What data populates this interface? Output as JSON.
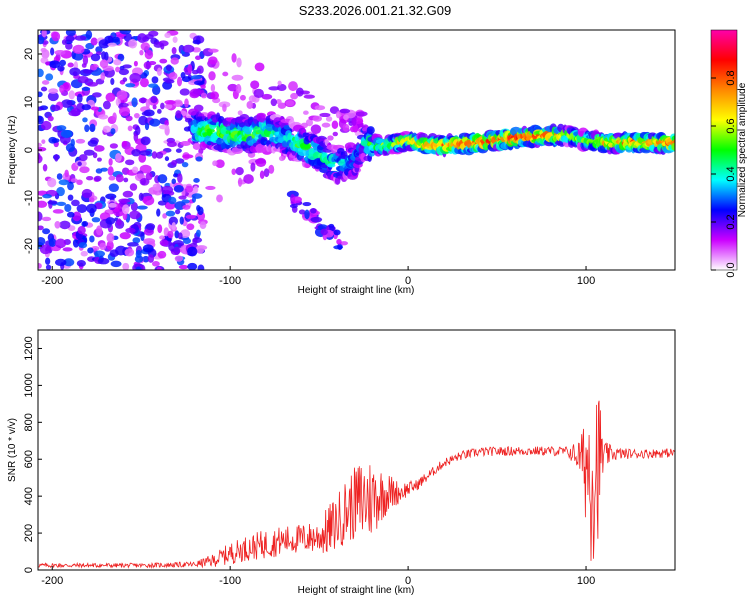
{
  "figure_title": "S233.2026.001.21.32.G09",
  "chart_data": [
    {
      "type": "heatmap",
      "title": "S233.2026.001.21.32.G09",
      "xlabel": "Height of straight line (km)",
      "ylabel": "Frequency (Hz)",
      "xlim": [
        -208,
        150
      ],
      "ylim": [
        -25,
        25
      ],
      "x_ticks": [
        -200,
        -100,
        0,
        100
      ],
      "y_ticks": [
        -20,
        -10,
        0,
        10,
        20
      ],
      "colorbar": {
        "label": "Normalized spectral amplitude",
        "range": [
          0,
          1
        ],
        "ticks": [
          0.0,
          0.2,
          0.4,
          0.6,
          0.8
        ],
        "colors": [
          "#ffffff",
          "#cc00ff",
          "#0000ff",
          "#00ffff",
          "#00ff00",
          "#ffff00",
          "#ff8800",
          "#ff0000",
          "#ff00aa"
        ]
      },
      "ridge": {
        "x": [
          -120,
          -110,
          -100,
          -90,
          -80,
          -70,
          -60,
          -50,
          -40,
          -30,
          -25,
          -20,
          -10,
          0,
          10,
          20,
          40,
          60,
          80,
          90,
          100,
          110,
          120,
          150
        ],
        "y": [
          4,
          4,
          3,
          3,
          4,
          3,
          1,
          -1,
          -3,
          -2,
          2,
          1,
          1,
          2,
          1,
          1,
          1.5,
          2.5,
          3,
          3,
          2,
          1.5,
          1.5,
          1.5
        ],
        "amp": [
          0.45,
          0.55,
          0.5,
          0.5,
          0.45,
          0.4,
          0.5,
          0.45,
          0.4,
          0.3,
          0.35,
          0.55,
          0.6,
          0.7,
          0.75,
          0.8,
          0.85,
          0.88,
          0.85,
          0.6,
          0.55,
          0.7,
          0.8,
          0.8
        ]
      },
      "noise_region_x": [
        -208,
        -115
      ],
      "noise_amplitude_range": [
        0.05,
        0.3
      ],
      "scatter_tail_x": [
        -65,
        -35
      ],
      "scatter_tail_y": [
        -10,
        -20
      ]
    },
    {
      "type": "line",
      "xlabel": "Height of straight line (km)",
      "ylabel": "SNR (10 * v/v)",
      "xlim": [
        -208,
        150
      ],
      "ylim": [
        0,
        1300
      ],
      "x_ticks": [
        -200,
        -100,
        0,
        100
      ],
      "y_ticks": [
        0,
        200,
        400,
        600,
        800,
        1000,
        1200
      ],
      "series": [
        {
          "name": "SNR",
          "color": "#ee2222",
          "envelope_x": [
            -208,
            -150,
            -120,
            -110,
            -100,
            -90,
            -80,
            -70,
            -60,
            -50,
            -45,
            -40,
            -35,
            -30,
            -25,
            -20,
            -15,
            -10,
            -5,
            0,
            5,
            10,
            15,
            20,
            30,
            40,
            60,
            80,
            90,
            95,
            98,
            100,
            102,
            105,
            108,
            110,
            115,
            120,
            130,
            150
          ],
          "envelope_mean": [
            25,
            25,
            30,
            50,
            90,
            120,
            140,
            160,
            170,
            180,
            210,
            260,
            320,
            360,
            380,
            390,
            410,
            420,
            420,
            440,
            460,
            500,
            540,
            580,
            620,
            640,
            645,
            645,
            640,
            620,
            600,
            580,
            560,
            590,
            610,
            620,
            630,
            630,
            630,
            635
          ],
          "envelope_amp": [
            12,
            12,
            15,
            35,
            60,
            70,
            80,
            80,
            80,
            90,
            140,
            150,
            180,
            200,
            250,
            220,
            150,
            100,
            60,
            40,
            30,
            30,
            25,
            25,
            25,
            25,
            25,
            25,
            30,
            80,
            150,
            350,
            500,
            600,
            300,
            80,
            40,
            30,
            25,
            25
          ]
        }
      ]
    }
  ]
}
